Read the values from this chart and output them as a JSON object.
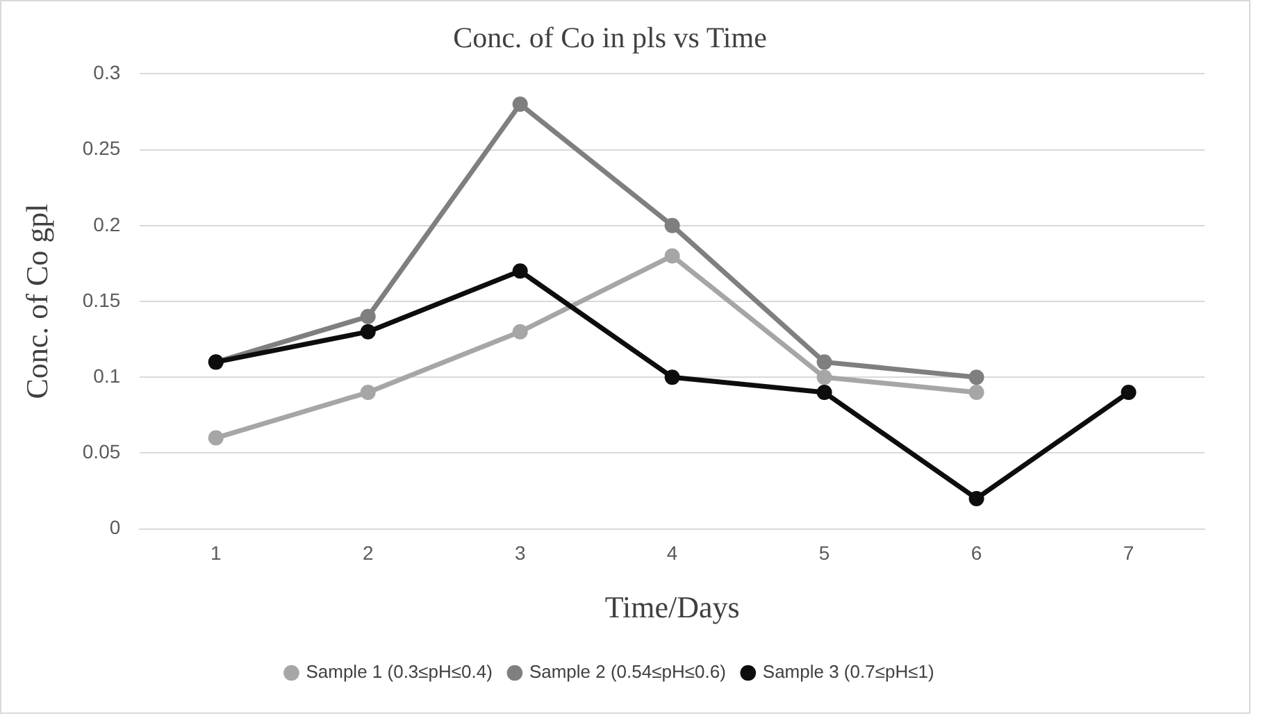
{
  "chart_data": {
    "type": "line",
    "title": "Conc. of Co in pls vs Time",
    "xlabel": "Time/Days",
    "ylabel": "Conc. of Co gpl",
    "categories": [
      "1",
      "2",
      "3",
      "4",
      "5",
      "6",
      "7"
    ],
    "series": [
      {
        "name": "Sample 1 (0.3≤pH≤0.4)",
        "color": "#a6a6a6",
        "values": [
          0.06,
          0.09,
          0.13,
          0.18,
          0.1,
          0.09,
          null
        ]
      },
      {
        "name": "Sample 2 (0.54≤pH≤0.6)",
        "color": "#7f7f7f",
        "values": [
          0.11,
          0.14,
          0.28,
          0.2,
          0.11,
          0.1,
          null
        ]
      },
      {
        "name": "Sample 3 (0.7≤pH≤1)",
        "color": "#0d0d0d",
        "values": [
          0.11,
          0.13,
          0.17,
          0.1,
          0.09,
          0.02,
          0.09
        ]
      }
    ],
    "ylim": [
      0,
      0.3
    ],
    "yticks": [
      0,
      0.05,
      0.1,
      0.15,
      0.2,
      0.25,
      0.3
    ],
    "grid": "y",
    "legend": "bottom",
    "marker": "circle",
    "line_style": "solid"
  }
}
